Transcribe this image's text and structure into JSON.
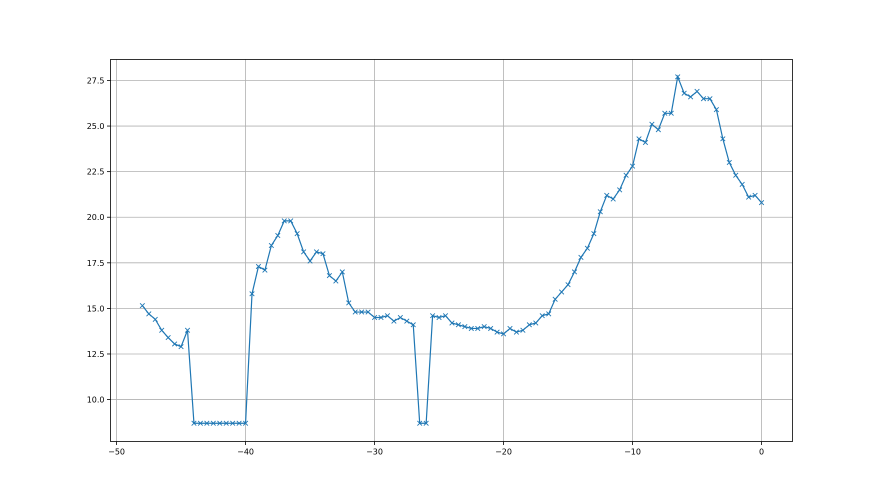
{
  "chart_data": {
    "type": "line",
    "title": "",
    "xlabel": "",
    "ylabel": "",
    "xlim": [
      -50.47,
      2.4
    ],
    "ylim": [
      7.7,
      28.65
    ],
    "grid": true,
    "marker": "x",
    "line_color": "#1f77b4",
    "xticks": [
      -50,
      -40,
      -30,
      -20,
      -10,
      0
    ],
    "xtick_labels": [
      "−50",
      "−40",
      "−30",
      "−20",
      "−10",
      "0"
    ],
    "yticks": [
      10.0,
      12.5,
      15.0,
      17.5,
      20.0,
      22.5,
      25.0,
      27.5
    ],
    "ytick_labels": [
      "10.0",
      "12.5",
      "15.0",
      "17.5",
      "20.0",
      "22.5",
      "25.0",
      "27.5"
    ],
    "series": [
      {
        "x": [
          -48,
          -47.5,
          -47,
          -46.5,
          -46,
          -45.5,
          -45,
          -44.5,
          -44,
          -43.5,
          -43,
          -42.5,
          -42,
          -41.5,
          -41,
          -40.5,
          -40,
          -39.5,
          -39,
          -38.5,
          -38,
          -37.5,
          -37,
          -36.5,
          -36,
          -35.5,
          -35,
          -34.5,
          -34,
          -33.5,
          -33,
          -32.5,
          -32,
          -31.5,
          -31,
          -30.5,
          -30,
          -29.5,
          -29,
          -28.5,
          -28,
          -27.5,
          -27,
          -26.5,
          -26,
          -25.5,
          -25,
          -24.5,
          -24,
          -23.5,
          -23,
          -22.5,
          -22,
          -21.5,
          -21,
          -20.5,
          -20,
          -19.5,
          -19,
          -18.5,
          -18,
          -17.5,
          -17,
          -16.5,
          -16,
          -15.5,
          -15,
          -14.5,
          -14,
          -13.5,
          -13,
          -12.5,
          -12,
          -11.5,
          -11,
          -10.5,
          -10,
          -9.5,
          -9,
          -8.5,
          -8,
          -7.5,
          -7,
          -6.5,
          -6,
          -5.5,
          -5,
          -4.5,
          -4,
          -3.5,
          -3,
          -2.5,
          -2,
          -1.5,
          -1,
          -0.5,
          0
        ],
        "y": [
          15.15,
          14.7,
          14.4,
          13.8,
          13.4,
          13.05,
          12.9,
          13.8,
          8.7,
          8.7,
          8.7,
          8.7,
          8.7,
          8.7,
          8.7,
          8.7,
          8.7,
          15.8,
          17.3,
          17.1,
          18.45,
          19.0,
          19.8,
          19.8,
          19.1,
          18.1,
          17.6,
          18.1,
          18.0,
          16.8,
          16.5,
          17.0,
          15.3,
          14.8,
          14.8,
          14.8,
          14.5,
          14.5,
          14.6,
          14.3,
          14.5,
          14.3,
          14.1,
          8.7,
          8.7,
          14.6,
          14.5,
          14.6,
          14.2,
          14.1,
          14.0,
          13.9,
          13.9,
          14.0,
          13.9,
          13.7,
          13.6,
          13.9,
          13.7,
          13.8,
          14.1,
          14.2,
          14.6,
          14.7,
          15.5,
          15.9,
          16.3,
          17.0,
          17.8,
          18.3,
          19.1,
          20.3,
          21.2,
          21.0,
          21.5,
          22.3,
          22.8,
          24.3,
          24.1,
          25.1,
          24.8,
          25.7,
          25.7,
          27.7,
          26.8,
          26.6,
          26.9,
          26.5,
          26.5,
          25.9,
          24.3,
          23.0,
          22.3,
          21.8,
          21.1,
          21.2,
          20.8
        ]
      }
    ]
  }
}
